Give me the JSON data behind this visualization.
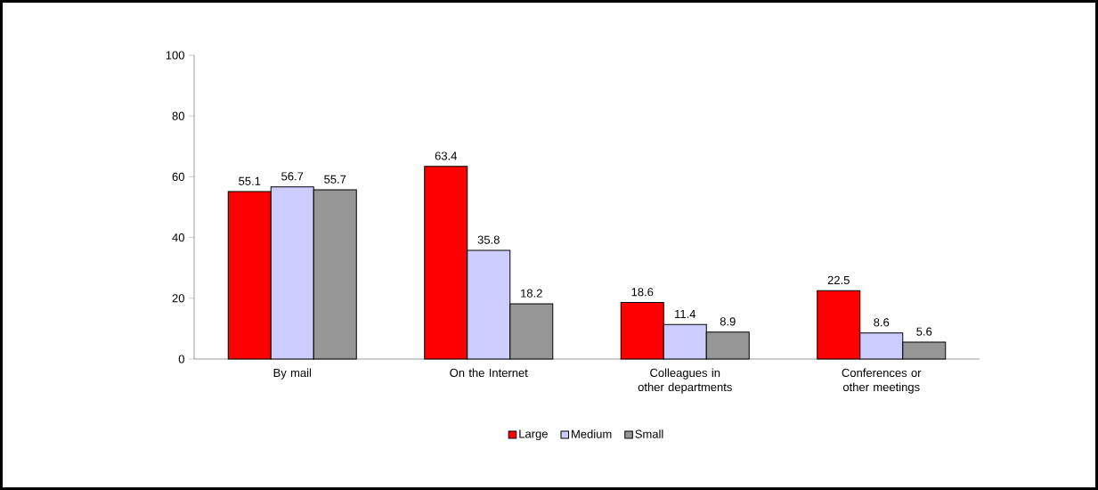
{
  "chart_data": {
    "type": "bar",
    "categories": [
      "By mail",
      "On the Internet",
      "Colleagues in other departments",
      "Conferences or other meetings"
    ],
    "series": [
      {
        "name": "Large",
        "color": "#ff0000",
        "values": [
          55.1,
          63.4,
          18.6,
          22.5
        ]
      },
      {
        "name": "Medium",
        "color": "#ccccff",
        "values": [
          56.7,
          35.8,
          11.4,
          8.6
        ]
      },
      {
        "name": "Small",
        "color": "#969696",
        "values": [
          55.7,
          18.2,
          8.9,
          5.6
        ]
      }
    ],
    "ylim": [
      0,
      100
    ],
    "yticks": [
      0,
      20,
      40,
      60,
      80,
      100
    ],
    "data_labels": true,
    "grid": false,
    "legend": "bottom"
  }
}
